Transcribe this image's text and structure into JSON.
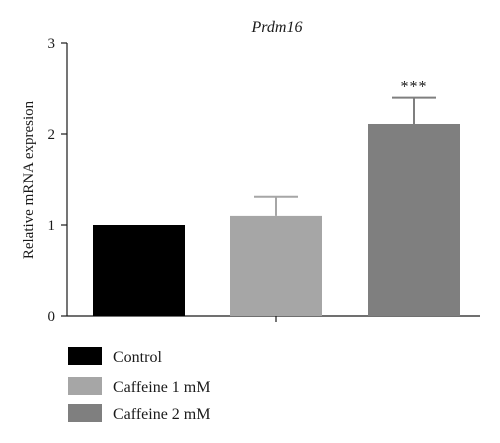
{
  "chart_data": {
    "type": "bar",
    "title": "Prdm16",
    "ylabel": "Relative mRNA expresion",
    "xlabel": "",
    "ylim": [
      0,
      3
    ],
    "yticks": [
      "0",
      "1",
      "2",
      "3"
    ],
    "categories": [
      "Control",
      "Caffeine 1 mM",
      "Caffeine 2 mM"
    ],
    "values": [
      1.0,
      1.1,
      2.11
    ],
    "error": [
      0,
      0.21,
      0.29
    ],
    "annotations": [
      "",
      "",
      "***"
    ],
    "colors": [
      "#000000",
      "#a6a6a6",
      "#7f7f7f"
    ],
    "legend": {
      "placement": "bottom-left",
      "entries": [
        "Control",
        "Caffeine 1 mM",
        "Caffeine 2 mM"
      ]
    },
    "grid": false
  }
}
